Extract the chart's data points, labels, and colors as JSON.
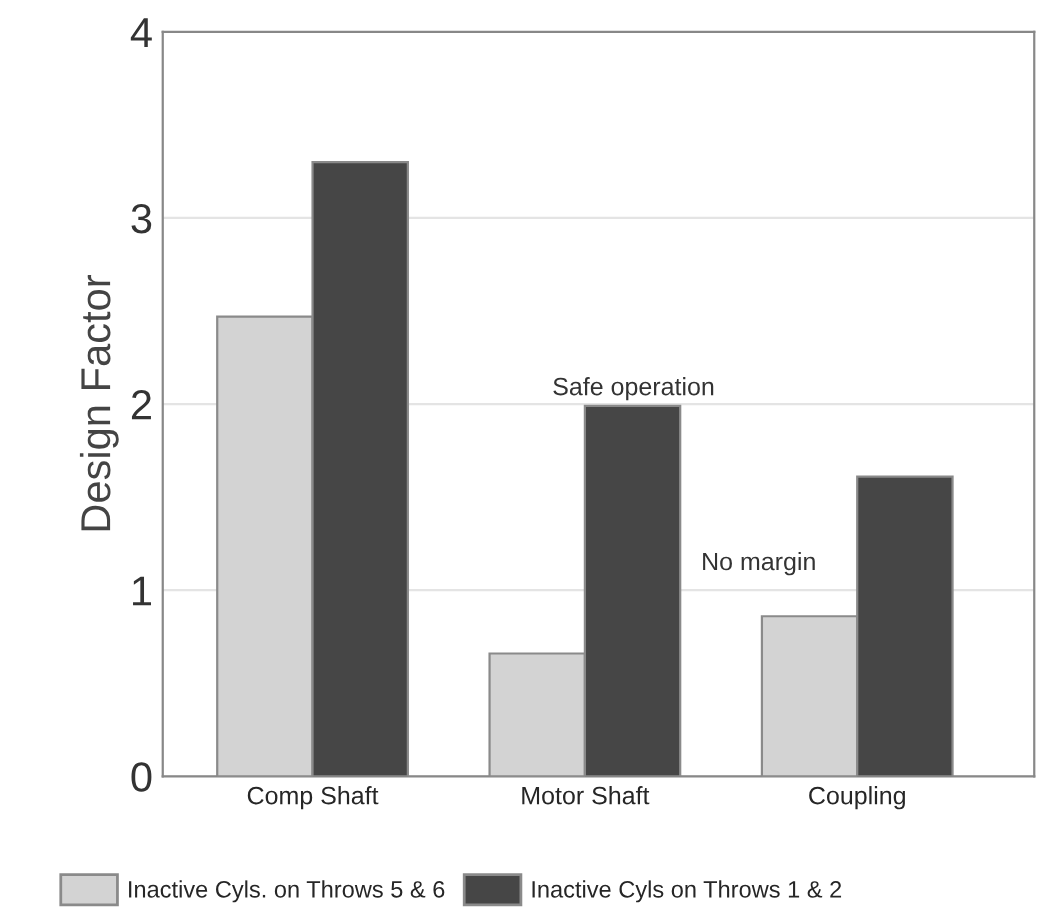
{
  "chart_data": {
    "type": "bar",
    "ylabel": "Design Factor",
    "categories": [
      "Comp Shaft",
      "Motor Shaft",
      "Coupling"
    ],
    "series": [
      {
        "name": "Inactive Cyls. on Throws 5 & 6",
        "color": "#d3d3d3",
        "values": [
          2.47,
          0.66,
          0.86
        ]
      },
      {
        "name": "Inactive Cyls on Throws 1 & 2",
        "color": "#464646",
        "values": [
          3.3,
          1.99,
          1.61
        ]
      }
    ],
    "ylim": [
      0,
      4
    ],
    "yticks": [
      0,
      1,
      2,
      3,
      4
    ],
    "grid": "y",
    "legend": "bottom",
    "annotations": [
      {
        "text": "Safe operation",
        "x": "Motor Shaft",
        "y": 2
      },
      {
        "text": "No margin",
        "x": "Coupling",
        "y": 1
      }
    ]
  }
}
